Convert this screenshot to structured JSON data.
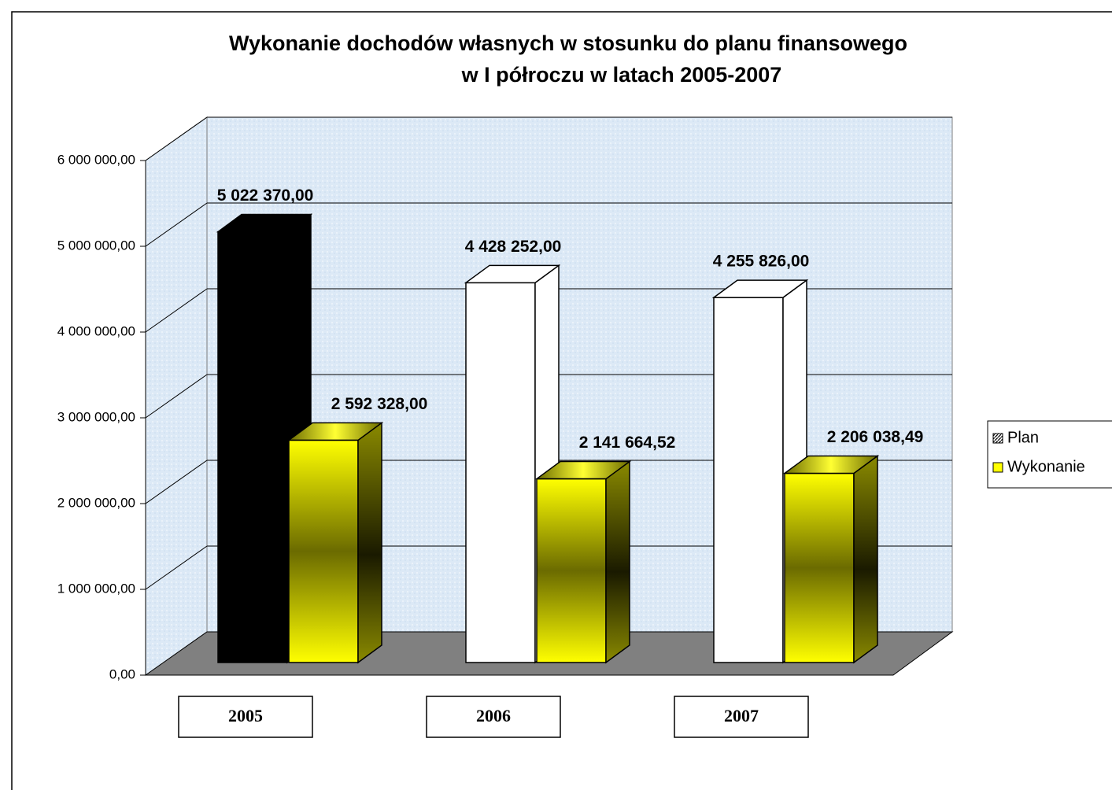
{
  "chart_data": {
    "type": "bar3d",
    "title": [
      "Wykonanie dochodów własnych w stosunku do planu finansowego",
      "w I półroczu w latach 2005-2007"
    ],
    "categories": [
      "2005",
      "2006",
      "2007"
    ],
    "series": [
      {
        "name": "Plan",
        "color": "#ffffff",
        "colors": [
          "#000000",
          "#ffffff",
          "#ffffff"
        ],
        "values": [
          5022370,
          4428252,
          4255826
        ],
        "value_labels": [
          "5 022 370,00",
          "4 428 252,00",
          "4 255 826,00"
        ]
      },
      {
        "name": "Wykonanie",
        "color": "#ffff00",
        "values": [
          2592328,
          2141664.52,
          2206038.49
        ],
        "value_labels": [
          "2 592 328,00",
          "2 141 664,52",
          "2 206 038,49"
        ]
      }
    ],
    "ylim": [
      0,
      6000000
    ],
    "yticks": [
      {
        "value": 0,
        "label": "0,00"
      },
      {
        "value": 1000000,
        "label": "1 000 000,00"
      },
      {
        "value": 2000000,
        "label": "2 000 000,00"
      },
      {
        "value": 3000000,
        "label": "3 000 000,00"
      },
      {
        "value": 4000000,
        "label": "4 000 000,00"
      },
      {
        "value": 5000000,
        "label": "5 000 000,00"
      },
      {
        "value": 6000000,
        "label": "6 000 000,00"
      }
    ],
    "grid": true,
    "legend": "right"
  }
}
